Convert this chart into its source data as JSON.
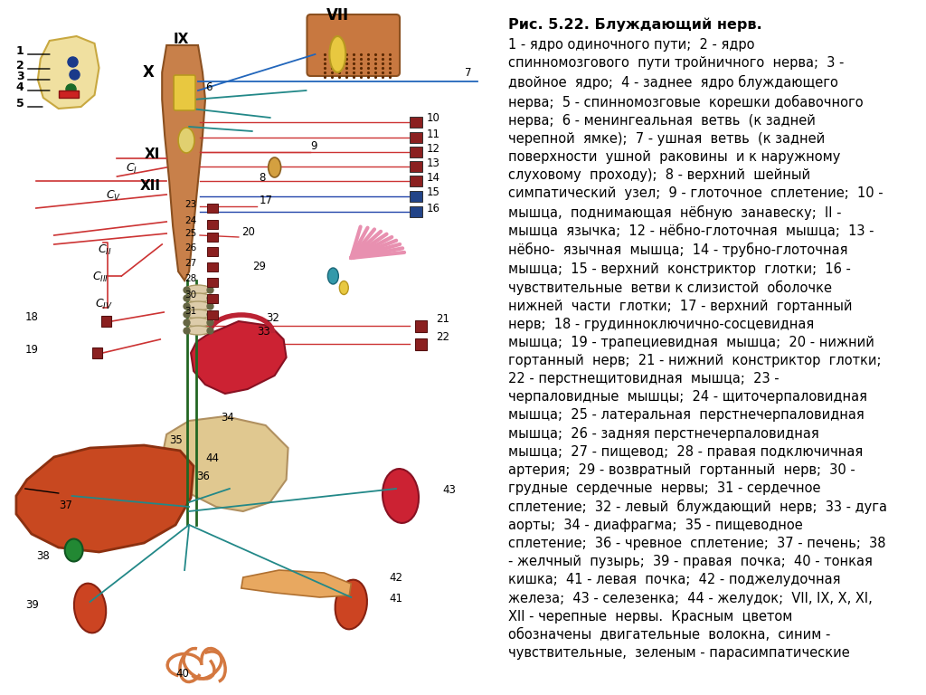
{
  "title": "Рис. 5.22. Блуждающий нерв.",
  "body": "1 - ядро одиночного пути;  2 - ядро\nспинномозгового  пути тройничного  нерва;  3 -\nдвойное  ядро;  4 - заднее  ядро блуждающего\nнерва;  5 - спинномозговые  корешки добавочного\nнерва;  6 - менингеальная  ветвь  (к задней\nчерепной  ямке);  7 - ушная  ветвь  (к задней\nповерхности  ушной  раковины  и к наружному\nслуховому  проходу);  8 - верхний  шейный\nсимпатический  узел;  9 - глоточное  сплетение;  10 -\nмышца,  поднимающая  нёбную  занавеску;  II -\nмышца  язычка;  12 - нёбно-глоточная  мышца;  13 -\nнёбно-  язычная  мышца;  14 - трубно-глоточная\nмышца;  15 - верхний  констриктор  глотки;  16 -\nчувствительные  ветви к слизистой  оболочке\nнижней  части  глотки;  17 - верхний  гортанный\nнерв;  18 - грудинноключично-сосцевидная\nмышца;  19 - трапециевидная  мышца;  20 - нижний\nгортанный  нерв;  21 - нижний  констриктор  глотки;\n22 - перстнещитовидная  мышца;  23 -\nчерпаловидные  мышцы;  24 - щиточерпаловидная\nмышца;  25 - латеральная  перстнечерпаловидная\nмышца;  26 - задняя перстнечерпаловидная\nмышца;  27 - пищевод;  28 - правая подключичная\nартерия;  29 - возвратный  гортанный  нерв;  30 -\nгрудные  сердечные  нервы;  31 - сердечное\nсплетение;  32 - левый  блуждающий  нерв;  33 - дуга\nаорты;  34 - диафрагма;  35 - пищеводное\nсплетение;  36 - чревное  сплетение;  37 - печень;  38\n- желчный  пузырь;  39 - правая  почка;  40 - тонкая\nкишка;  41 - левая  почка;  42 - поджелудочная\nжелеза;  43 - селезенка;  44 - желудок;  VII, IX, X, XI,\nXII - черепные  нервы.  Красным  цветом\nобозначены  двигательные  волокна,  синим -\nчувствительные,  зеленым - парасимпатические",
  "bg_color": "#ffffff",
  "text_color": "#000000",
  "text_fontsize": 10.5,
  "title_fontsize": 11.5,
  "fig_width": 10.24,
  "fig_height": 7.68
}
